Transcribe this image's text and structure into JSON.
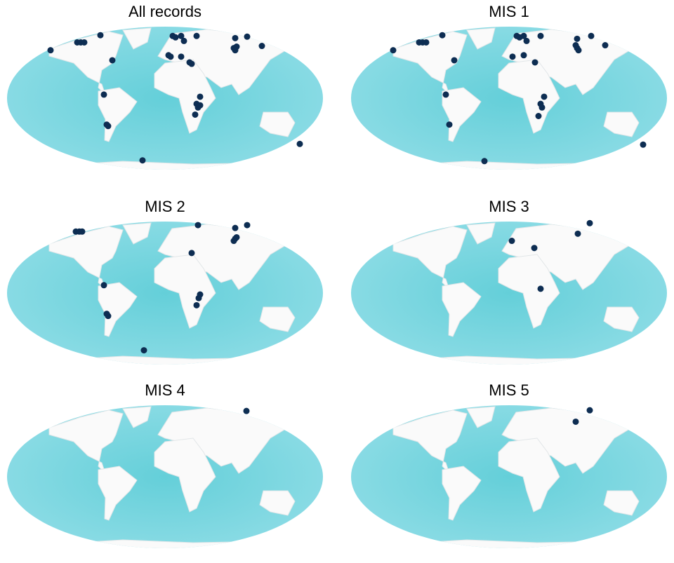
{
  "panels": [
    {
      "title": "All records",
      "points": [
        {
          "lon": -130.4,
          "lat": 60.3
        },
        {
          "lon": -100,
          "lat": 70.2
        },
        {
          "lon": -96,
          "lat": 70.2
        },
        {
          "lon": -92,
          "lat": 70.2
        },
        {
          "lon": -73.6,
          "lat": 79.2
        },
        {
          "lon": -60,
          "lat": 47.7
        },
        {
          "lon": -69.6,
          "lat": 4.5
        },
        {
          "lon": -66.4,
          "lat": -33.3
        },
        {
          "lon": -64.8,
          "lat": -35.1
        },
        {
          "lon": -25.6,
          "lat": -78.3
        },
        {
          "lon": 8.8,
          "lat": 78.3
        },
        {
          "lon": 12,
          "lat": 76.5
        },
        {
          "lon": 18.4,
          "lat": 78.3
        },
        {
          "lon": 21.6,
          "lat": 72
        },
        {
          "lon": 36,
          "lat": 78.3
        },
        {
          "lon": 4,
          "lat": 54
        },
        {
          "lon": 6.4,
          "lat": 52.2
        },
        {
          "lon": 18.4,
          "lat": 52.2
        },
        {
          "lon": 28,
          "lat": 45
        },
        {
          "lon": 30.4,
          "lat": 43.2
        },
        {
          "lon": 40,
          "lat": 1.8
        },
        {
          "lon": 36,
          "lat": -7.2
        },
        {
          "lon": 37.6,
          "lat": -11.7
        },
        {
          "lon": 40,
          "lat": -9
        },
        {
          "lon": 34.4,
          "lat": -20.7
        },
        {
          "lon": 80,
          "lat": 75.6
        },
        {
          "lon": 93.6,
          "lat": 77.4
        },
        {
          "lon": 78.4,
          "lat": 63
        },
        {
          "lon": 80,
          "lat": 60.3
        },
        {
          "lon": 81.6,
          "lat": 64.8
        },
        {
          "lon": 110.4,
          "lat": 65.7
        },
        {
          "lon": 153.6,
          "lat": -57.6
        }
      ]
    },
    {
      "title": "MIS 1",
      "points": [
        {
          "lon": -132,
          "lat": 60.3
        },
        {
          "lon": -102.4,
          "lat": 70.2
        },
        {
          "lon": -98.4,
          "lat": 70.2
        },
        {
          "lon": -94.4,
          "lat": 70.2
        },
        {
          "lon": -76,
          "lat": 79.2
        },
        {
          "lon": -62.4,
          "lat": 47.7
        },
        {
          "lon": -72,
          "lat": 4.5
        },
        {
          "lon": -68,
          "lat": -33.3
        },
        {
          "lon": -28,
          "lat": -79.2
        },
        {
          "lon": 8.8,
          "lat": 78.3
        },
        {
          "lon": 12,
          "lat": 76.5
        },
        {
          "lon": 16.8,
          "lat": 78.3
        },
        {
          "lon": 20,
          "lat": 72
        },
        {
          "lon": 36,
          "lat": 78.3
        },
        {
          "lon": 4,
          "lat": 52.2
        },
        {
          "lon": 16.8,
          "lat": 54
        },
        {
          "lon": 29.6,
          "lat": 45
        },
        {
          "lon": 40,
          "lat": 1.8
        },
        {
          "lon": 36,
          "lat": -7.2
        },
        {
          "lon": 37.6,
          "lat": -11.7
        },
        {
          "lon": 33.6,
          "lat": -22.5
        },
        {
          "lon": 77.6,
          "lat": 74.7
        },
        {
          "lon": 93.6,
          "lat": 78.3
        },
        {
          "lon": 77.6,
          "lat": 63
        },
        {
          "lon": 79.2,
          "lat": 60.3
        },
        {
          "lon": 76,
          "lat": 66.6
        },
        {
          "lon": 109.6,
          "lat": 66.6
        },
        {
          "lon": 152.8,
          "lat": -58.5
        }
      ]
    },
    {
      "title": "MIS 2",
      "points": [
        {
          "lon": -101.6,
          "lat": 77.4
        },
        {
          "lon": -97.6,
          "lat": 77.4
        },
        {
          "lon": -94.4,
          "lat": 77.4
        },
        {
          "lon": 37.6,
          "lat": 85.5
        },
        {
          "lon": 30.4,
          "lat": 50.4
        },
        {
          "lon": -69.6,
          "lat": 9.9
        },
        {
          "lon": -66.4,
          "lat": -26.1
        },
        {
          "lon": -64.8,
          "lat": -28.8
        },
        {
          "lon": -24,
          "lat": -72
        },
        {
          "lon": 40,
          "lat": -1.8
        },
        {
          "lon": 38.4,
          "lat": -6.3
        },
        {
          "lon": 36,
          "lat": -15.3
        },
        {
          "lon": 80,
          "lat": 81.9
        },
        {
          "lon": 93.6,
          "lat": 85.5
        },
        {
          "lon": 80,
          "lat": 68.4
        },
        {
          "lon": 81.6,
          "lat": 70.2
        },
        {
          "lon": 78.4,
          "lat": 65.7
        }
      ]
    },
    {
      "title": "MIS 3",
      "points": [
        {
          "lon": 92,
          "lat": 88
        },
        {
          "lon": 78.4,
          "lat": 74.7
        },
        {
          "lon": 3.2,
          "lat": 65.7
        },
        {
          "lon": 28.8,
          "lat": 56.7
        },
        {
          "lon": 36,
          "lat": 5.4
        }
      ]
    },
    {
      "title": "MIS 4",
      "points": [
        {
          "lon": 92.8,
          "lat": 82.8
        }
      ]
    },
    {
      "title": "MIS 5",
      "points": [
        {
          "lon": 92,
          "lat": 83.7
        },
        {
          "lon": 76,
          "lat": 69.3
        }
      ]
    }
  ]
}
